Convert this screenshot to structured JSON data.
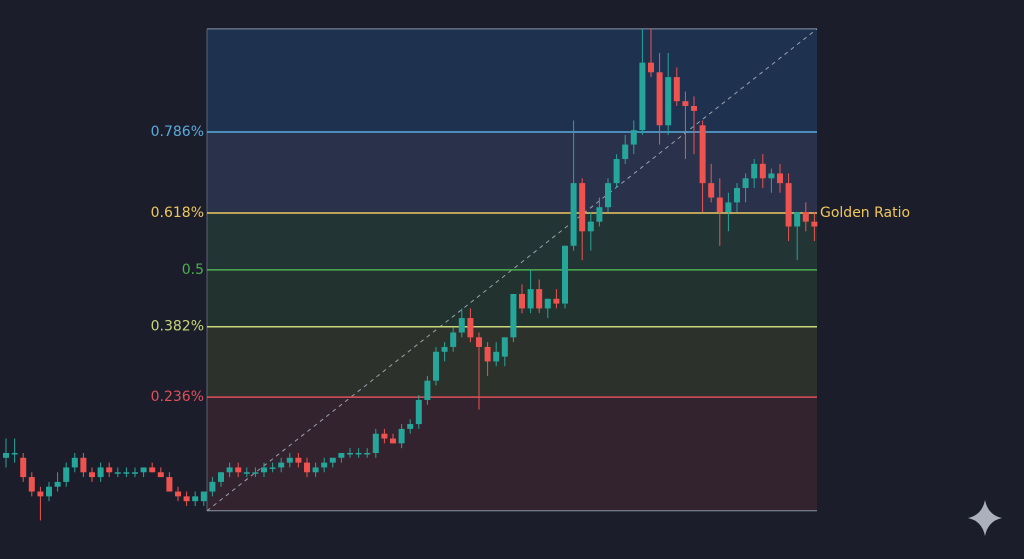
{
  "chart_data": {
    "type": "candlestick",
    "ylim": [
      -0.1,
      1.06
    ],
    "fib_range": [
      0,
      1
    ],
    "levels": [
      {
        "value": 0.786,
        "label": "0.786%",
        "color": "#5aaadf",
        "fill": "#2b3650"
      },
      {
        "value": 0.618,
        "label": "0.618%",
        "color": "#f0c75e",
        "fill": "#233a36"
      },
      {
        "value": 0.5,
        "color": "#4caf50",
        "fill": "#223630"
      },
      {
        "value": 0.382,
        "label": "0.382%",
        "color": "#c9d67a",
        "fill": "#30352c"
      },
      {
        "value": 0.236,
        "label": "0.236%",
        "color": "#e0505a",
        "fill": "#362430"
      }
    ],
    "top_fill": "#1f3556",
    "annotation": {
      "text": "Golden Ratio",
      "level": 0.618
    },
    "up_color": "#26a69a",
    "down_color": "#ef5350",
    "open": [
      0.11,
      0.12,
      0.11,
      0.07,
      0.04,
      0.03,
      0.05,
      0.06,
      0.09,
      0.11,
      0.08,
      0.07,
      0.09,
      0.08,
      0.08,
      0.08,
      0.08,
      0.09,
      0.08,
      0.07,
      0.04,
      0.03,
      0.02,
      0.02,
      0.04,
      0.06,
      0.08,
      0.09,
      0.08,
      0.08,
      0.08,
      0.09,
      0.09,
      0.1,
      0.11,
      0.1,
      0.08,
      0.09,
      0.1,
      0.11,
      0.12,
      0.12,
      0.12,
      0.12,
      0.16,
      0.15,
      0.14,
      0.17,
      0.18,
      0.23,
      0.27,
      0.33,
      0.34,
      0.37,
      0.4,
      0.36,
      0.34,
      0.31,
      0.32,
      0.36,
      0.45,
      0.42,
      0.46,
      0.42,
      0.44,
      0.43,
      0.55,
      0.68,
      0.58,
      0.6,
      0.63,
      0.68,
      0.73,
      0.76,
      0.79,
      0.93,
      0.91,
      0.8,
      0.9,
      0.85,
      0.84,
      0.8,
      0.68,
      0.65,
      0.62,
      0.64,
      0.67,
      0.69,
      0.72,
      0.69,
      0.7,
      0.68,
      0.59,
      0.62,
      0.6
    ],
    "high": [
      0.15,
      0.15,
      0.12,
      0.08,
      0.05,
      0.06,
      0.08,
      0.1,
      0.12,
      0.12,
      0.09,
      0.1,
      0.1,
      0.09,
      0.09,
      0.09,
      0.09,
      0.1,
      0.09,
      0.08,
      0.05,
      0.04,
      0.04,
      0.04,
      0.07,
      0.08,
      0.1,
      0.1,
      0.09,
      0.09,
      0.1,
      0.1,
      0.11,
      0.12,
      0.12,
      0.11,
      0.1,
      0.11,
      0.11,
      0.12,
      0.13,
      0.13,
      0.13,
      0.17,
      0.17,
      0.16,
      0.18,
      0.19,
      0.24,
      0.28,
      0.34,
      0.35,
      0.38,
      0.42,
      0.42,
      0.37,
      0.35,
      0.35,
      0.36,
      0.45,
      0.47,
      0.5,
      0.48,
      0.44,
      0.46,
      0.55,
      0.81,
      0.69,
      0.62,
      0.65,
      0.69,
      0.74,
      0.78,
      0.81,
      1.0,
      1.0,
      0.95,
      0.95,
      0.92,
      0.87,
      0.86,
      0.81,
      0.72,
      0.69,
      0.66,
      0.68,
      0.7,
      0.73,
      0.74,
      0.71,
      0.72,
      0.7,
      0.62,
      0.64,
      0.62
    ],
    "low": [
      0.09,
      0.1,
      0.06,
      0.03,
      -0.02,
      0.02,
      0.04,
      0.05,
      0.08,
      0.07,
      0.06,
      0.06,
      0.07,
      0.07,
      0.07,
      0.07,
      0.07,
      0.08,
      0.07,
      0.04,
      0.02,
      0.01,
      0.01,
      0.01,
      0.03,
      0.05,
      0.07,
      0.07,
      0.07,
      0.07,
      0.07,
      0.08,
      0.08,
      0.09,
      0.09,
      0.07,
      0.07,
      0.08,
      0.09,
      0.1,
      0.11,
      0.11,
      0.11,
      0.11,
      0.14,
      0.14,
      0.13,
      0.16,
      0.17,
      0.22,
      0.26,
      0.31,
      0.33,
      0.36,
      0.35,
      0.21,
      0.28,
      0.3,
      0.3,
      0.35,
      0.41,
      0.41,
      0.41,
      0.4,
      0.42,
      0.42,
      0.54,
      0.52,
      0.54,
      0.59,
      0.62,
      0.67,
      0.72,
      0.74,
      0.78,
      0.9,
      0.76,
      0.78,
      0.84,
      0.73,
      0.74,
      0.62,
      0.64,
      0.55,
      0.58,
      0.62,
      0.64,
      0.67,
      0.67,
      0.66,
      0.66,
      0.56,
      0.52,
      0.58,
      0.56
    ],
    "close": [
      0.12,
      0.12,
      0.07,
      0.04,
      0.03,
      0.05,
      0.06,
      0.09,
      0.11,
      0.08,
      0.07,
      0.09,
      0.08,
      0.08,
      0.08,
      0.08,
      0.09,
      0.08,
      0.07,
      0.04,
      0.03,
      0.02,
      0.03,
      0.04,
      0.06,
      0.08,
      0.09,
      0.08,
      0.08,
      0.08,
      0.09,
      0.09,
      0.1,
      0.11,
      0.1,
      0.08,
      0.09,
      0.1,
      0.11,
      0.12,
      0.12,
      0.12,
      0.12,
      0.16,
      0.15,
      0.14,
      0.17,
      0.18,
      0.23,
      0.27,
      0.33,
      0.34,
      0.37,
      0.4,
      0.36,
      0.34,
      0.31,
      0.33,
      0.36,
      0.45,
      0.42,
      0.46,
      0.42,
      0.44,
      0.43,
      0.55,
      0.68,
      0.58,
      0.6,
      0.63,
      0.68,
      0.73,
      0.76,
      0.79,
      0.93,
      0.91,
      0.8,
      0.9,
      0.85,
      0.84,
      0.83,
      0.68,
      0.65,
      0.62,
      0.64,
      0.67,
      0.69,
      0.72,
      0.69,
      0.7,
      0.68,
      0.59,
      0.62,
      0.6,
      0.59
    ]
  }
}
